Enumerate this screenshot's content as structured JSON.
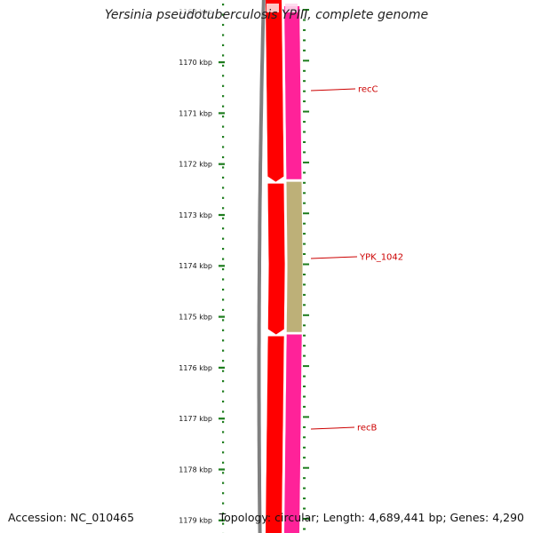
{
  "title": "Yersinia pseudotuberculosis YPIII, complete genome",
  "scale": {
    "unit": "kbp",
    "ticks": [
      1170,
      1171,
      1172,
      1173,
      1174,
      1175,
      1176,
      1177,
      1178,
      1179
    ],
    "partial_top_tick": 1169
  },
  "genes": [
    {
      "name": "recC",
      "start_kbp": 1168.9,
      "end_kbp": 1172.3,
      "strand": "reverse",
      "color": "#ff2299"
    },
    {
      "name": "YPK_1042",
      "start_kbp": 1172.35,
      "end_kbp": 1175.3,
      "strand": "reverse",
      "color": "#bdb078"
    },
    {
      "name": "recB",
      "start_kbp": 1175.35,
      "end_kbp": 1179.4,
      "strand": "reverse",
      "color": "#ff2299"
    }
  ],
  "cds_track_color": "#ff0000",
  "backbone_color": "#808080",
  "tick_color": "#1e7d1e",
  "footer": {
    "accession": "Accession: NC_010465",
    "info": "Topology: circular; Length: 4,689,441 bp; Genes: 4,290"
  }
}
